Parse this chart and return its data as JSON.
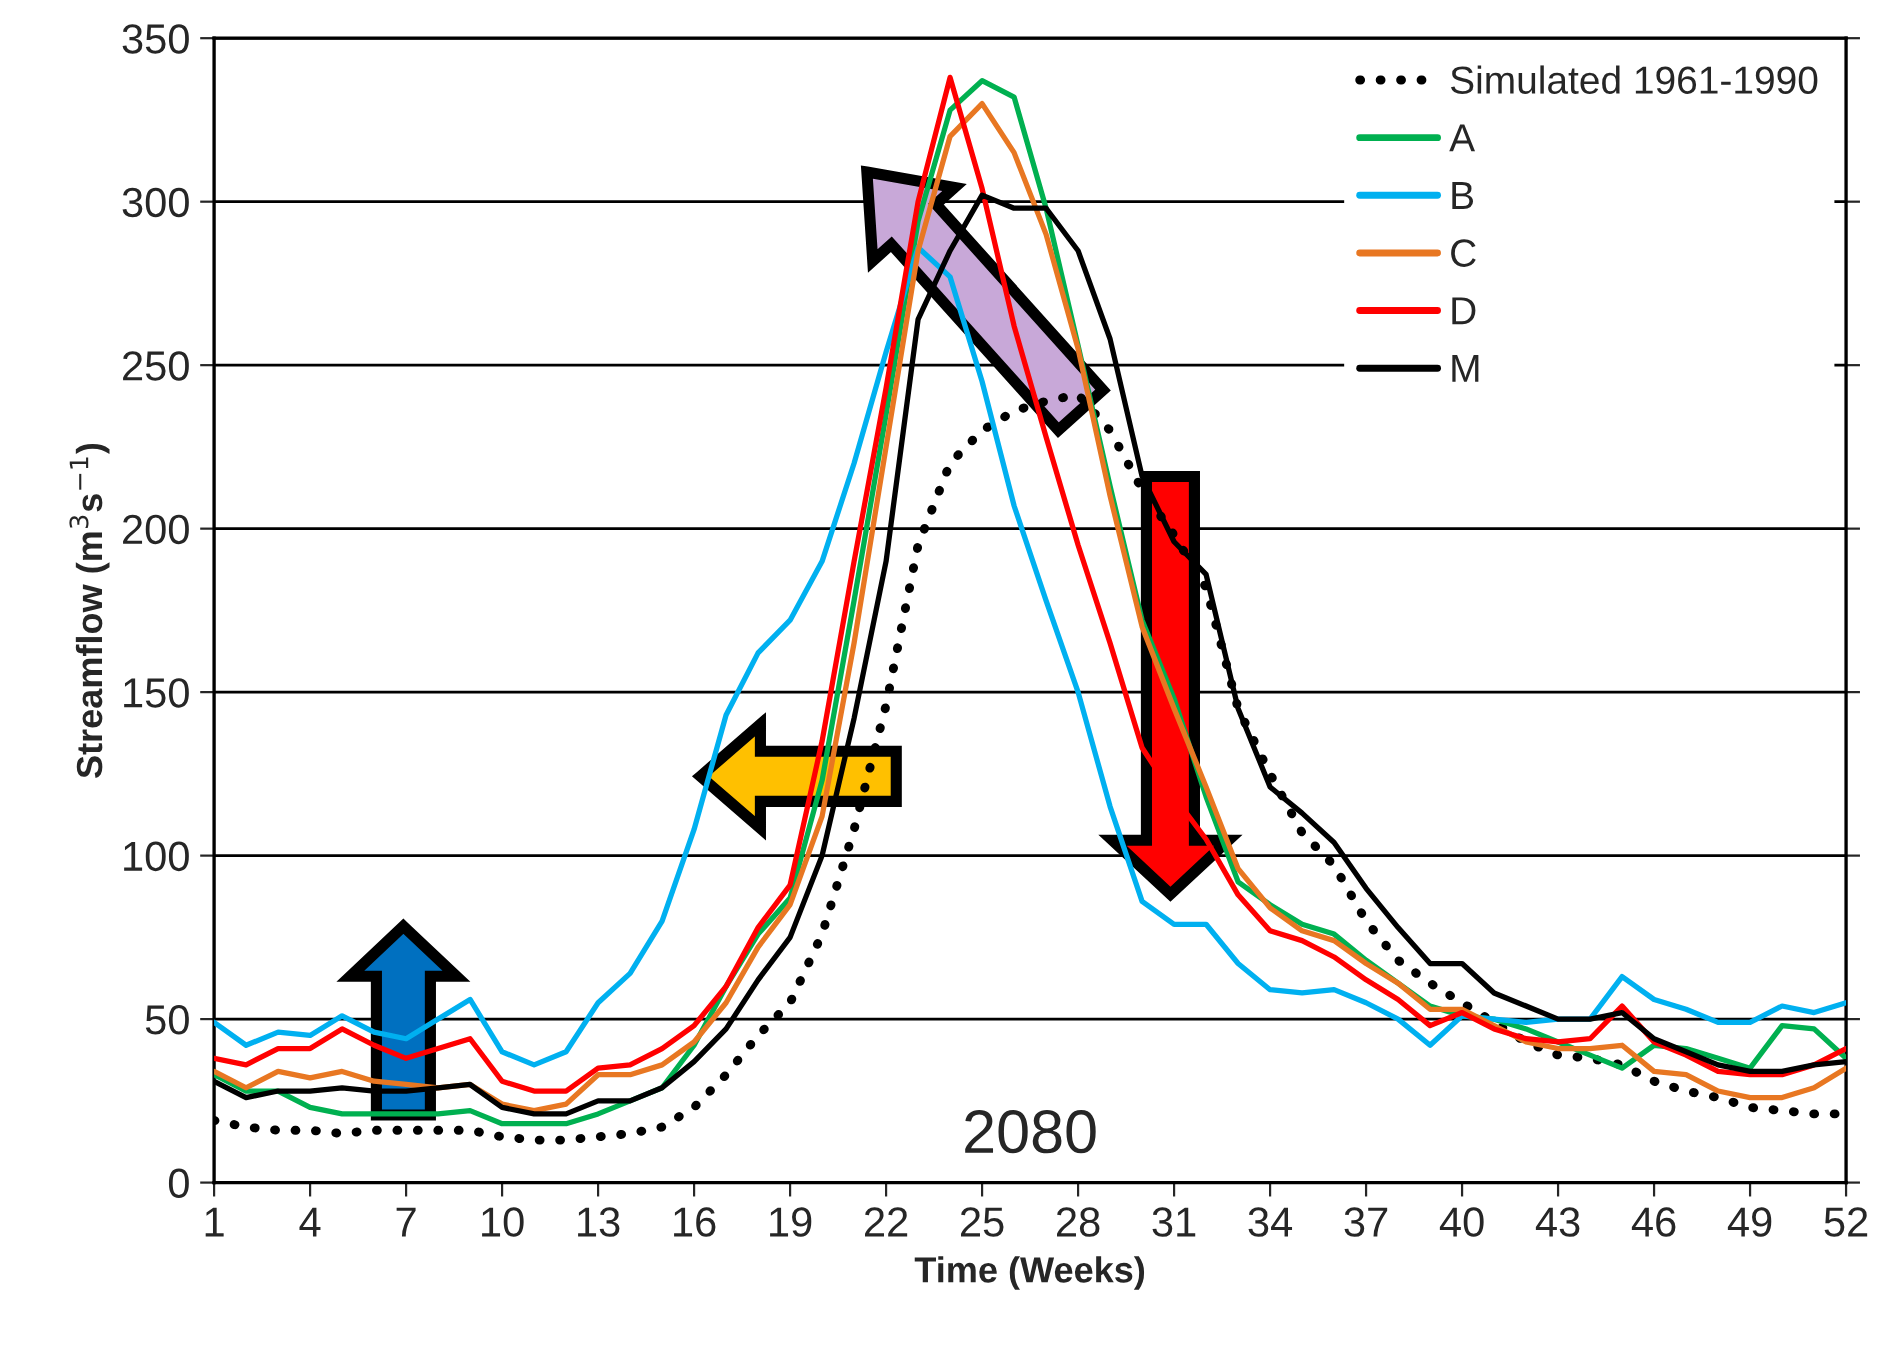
{
  "chart_data": {
    "type": "line",
    "xlabel": "Time (Weeks)",
    "ylabel": "Streamflow (m$^{3}$s$^{−1}$)",
    "x": [
      1,
      2,
      3,
      4,
      5,
      6,
      7,
      8,
      9,
      10,
      11,
      12,
      13,
      14,
      15,
      16,
      17,
      18,
      19,
      20,
      21,
      22,
      23,
      24,
      25,
      26,
      27,
      28,
      29,
      30,
      31,
      32,
      33,
      34,
      35,
      36,
      37,
      38,
      39,
      40,
      41,
      42,
      43,
      44,
      45,
      46,
      47,
      48,
      49,
      50,
      51,
      52
    ],
    "xlim": [
      1,
      52
    ],
    "xticks": [
      1,
      4,
      7,
      10,
      13,
      16,
      19,
      22,
      25,
      28,
      31,
      34,
      37,
      40,
      43,
      46,
      49,
      52
    ],
    "ylim": [
      0,
      350
    ],
    "yticks": [
      0,
      50,
      100,
      150,
      200,
      250,
      300,
      350
    ],
    "grid": "y",
    "legend": "top right",
    "annotations": [
      "2080"
    ],
    "series": [
      {
        "name": "Simulated 1961-1990",
        "color": "#000000",
        "line_style": "dotted",
        "values": [
          19,
          17,
          16,
          16,
          15,
          16,
          16,
          16,
          16,
          14,
          13,
          13,
          14,
          15,
          17,
          23,
          33,
          45,
          55,
          76,
          108,
          146,
          195,
          220,
          230,
          236,
          239,
          241,
          230,
          212,
          198,
          182,
          145,
          125,
          107,
          97,
          80,
          68,
          61,
          55,
          49,
          43,
          39,
          38,
          36,
          31,
          28,
          26,
          23,
          22,
          21,
          21
        ]
      },
      {
        "name": "A",
        "color": "#00b050",
        "line_style": "solid",
        "values": [
          33,
          28,
          28,
          23,
          21,
          21,
          21,
          21,
          22,
          18,
          18,
          18,
          21,
          25,
          29,
          42,
          60,
          76,
          87,
          123,
          178,
          235,
          294,
          328,
          337,
          332,
          298,
          256,
          213,
          172,
          148,
          118,
          92,
          85,
          79,
          76,
          68,
          61,
          54,
          51,
          50,
          47,
          43,
          39,
          35,
          42,
          41,
          38,
          35,
          48,
          47,
          38
        ]
      },
      {
        "name": "B",
        "color": "#00b0f0",
        "line_style": "solid",
        "values": [
          49,
          42,
          46,
          45,
          51,
          46,
          44,
          50,
          56,
          40,
          36,
          40,
          55,
          64,
          80,
          108,
          143,
          162,
          172,
          190,
          220,
          254,
          286,
          277,
          245,
          207,
          178,
          150,
          115,
          86,
          79,
          79,
          67,
          59,
          58,
          59,
          55,
          50,
          42,
          51,
          50,
          49,
          50,
          50,
          63,
          56,
          53,
          49,
          49,
          54,
          52,
          55
        ]
      },
      {
        "name": "C",
        "color": "#e87722",
        "line_style": "solid",
        "values": [
          34,
          29,
          34,
          32,
          34,
          31,
          30,
          29,
          30,
          24,
          22,
          24,
          33,
          33,
          36,
          43,
          55,
          72,
          85,
          112,
          165,
          225,
          285,
          320,
          330,
          315,
          290,
          255,
          210,
          170,
          145,
          121,
          96,
          84,
          77,
          74,
          67,
          61,
          53,
          53,
          48,
          43,
          41,
          41,
          42,
          34,
          33,
          28,
          26,
          26,
          29,
          35
        ]
      },
      {
        "name": "D",
        "color": "#ff0000",
        "line_style": "solid",
        "values": [
          38,
          36,
          41,
          41,
          47,
          42,
          38,
          41,
          44,
          31,
          28,
          28,
          35,
          36,
          41,
          48,
          60,
          78,
          91,
          135,
          190,
          243,
          300,
          338,
          304,
          262,
          228,
          195,
          165,
          133,
          118,
          105,
          88,
          77,
          74,
          69,
          62,
          56,
          48,
          52,
          47,
          44,
          43,
          44,
          54,
          43,
          39,
          34,
          33,
          33,
          36,
          41
        ]
      },
      {
        "name": "M",
        "color": "#000000",
        "line_style": "solid",
        "values": [
          31,
          26,
          28,
          28,
          29,
          28,
          28,
          29,
          30,
          23,
          21,
          21,
          25,
          25,
          29,
          37,
          47,
          62,
          75,
          100,
          142,
          190,
          264,
          285,
          302,
          298,
          298,
          285,
          258,
          216,
          196,
          186,
          145,
          121,
          113,
          104,
          90,
          78,
          67,
          67,
          58,
          54,
          50,
          50,
          52,
          44,
          40,
          36,
          34,
          34,
          36,
          37
        ]
      }
    ]
  }
}
